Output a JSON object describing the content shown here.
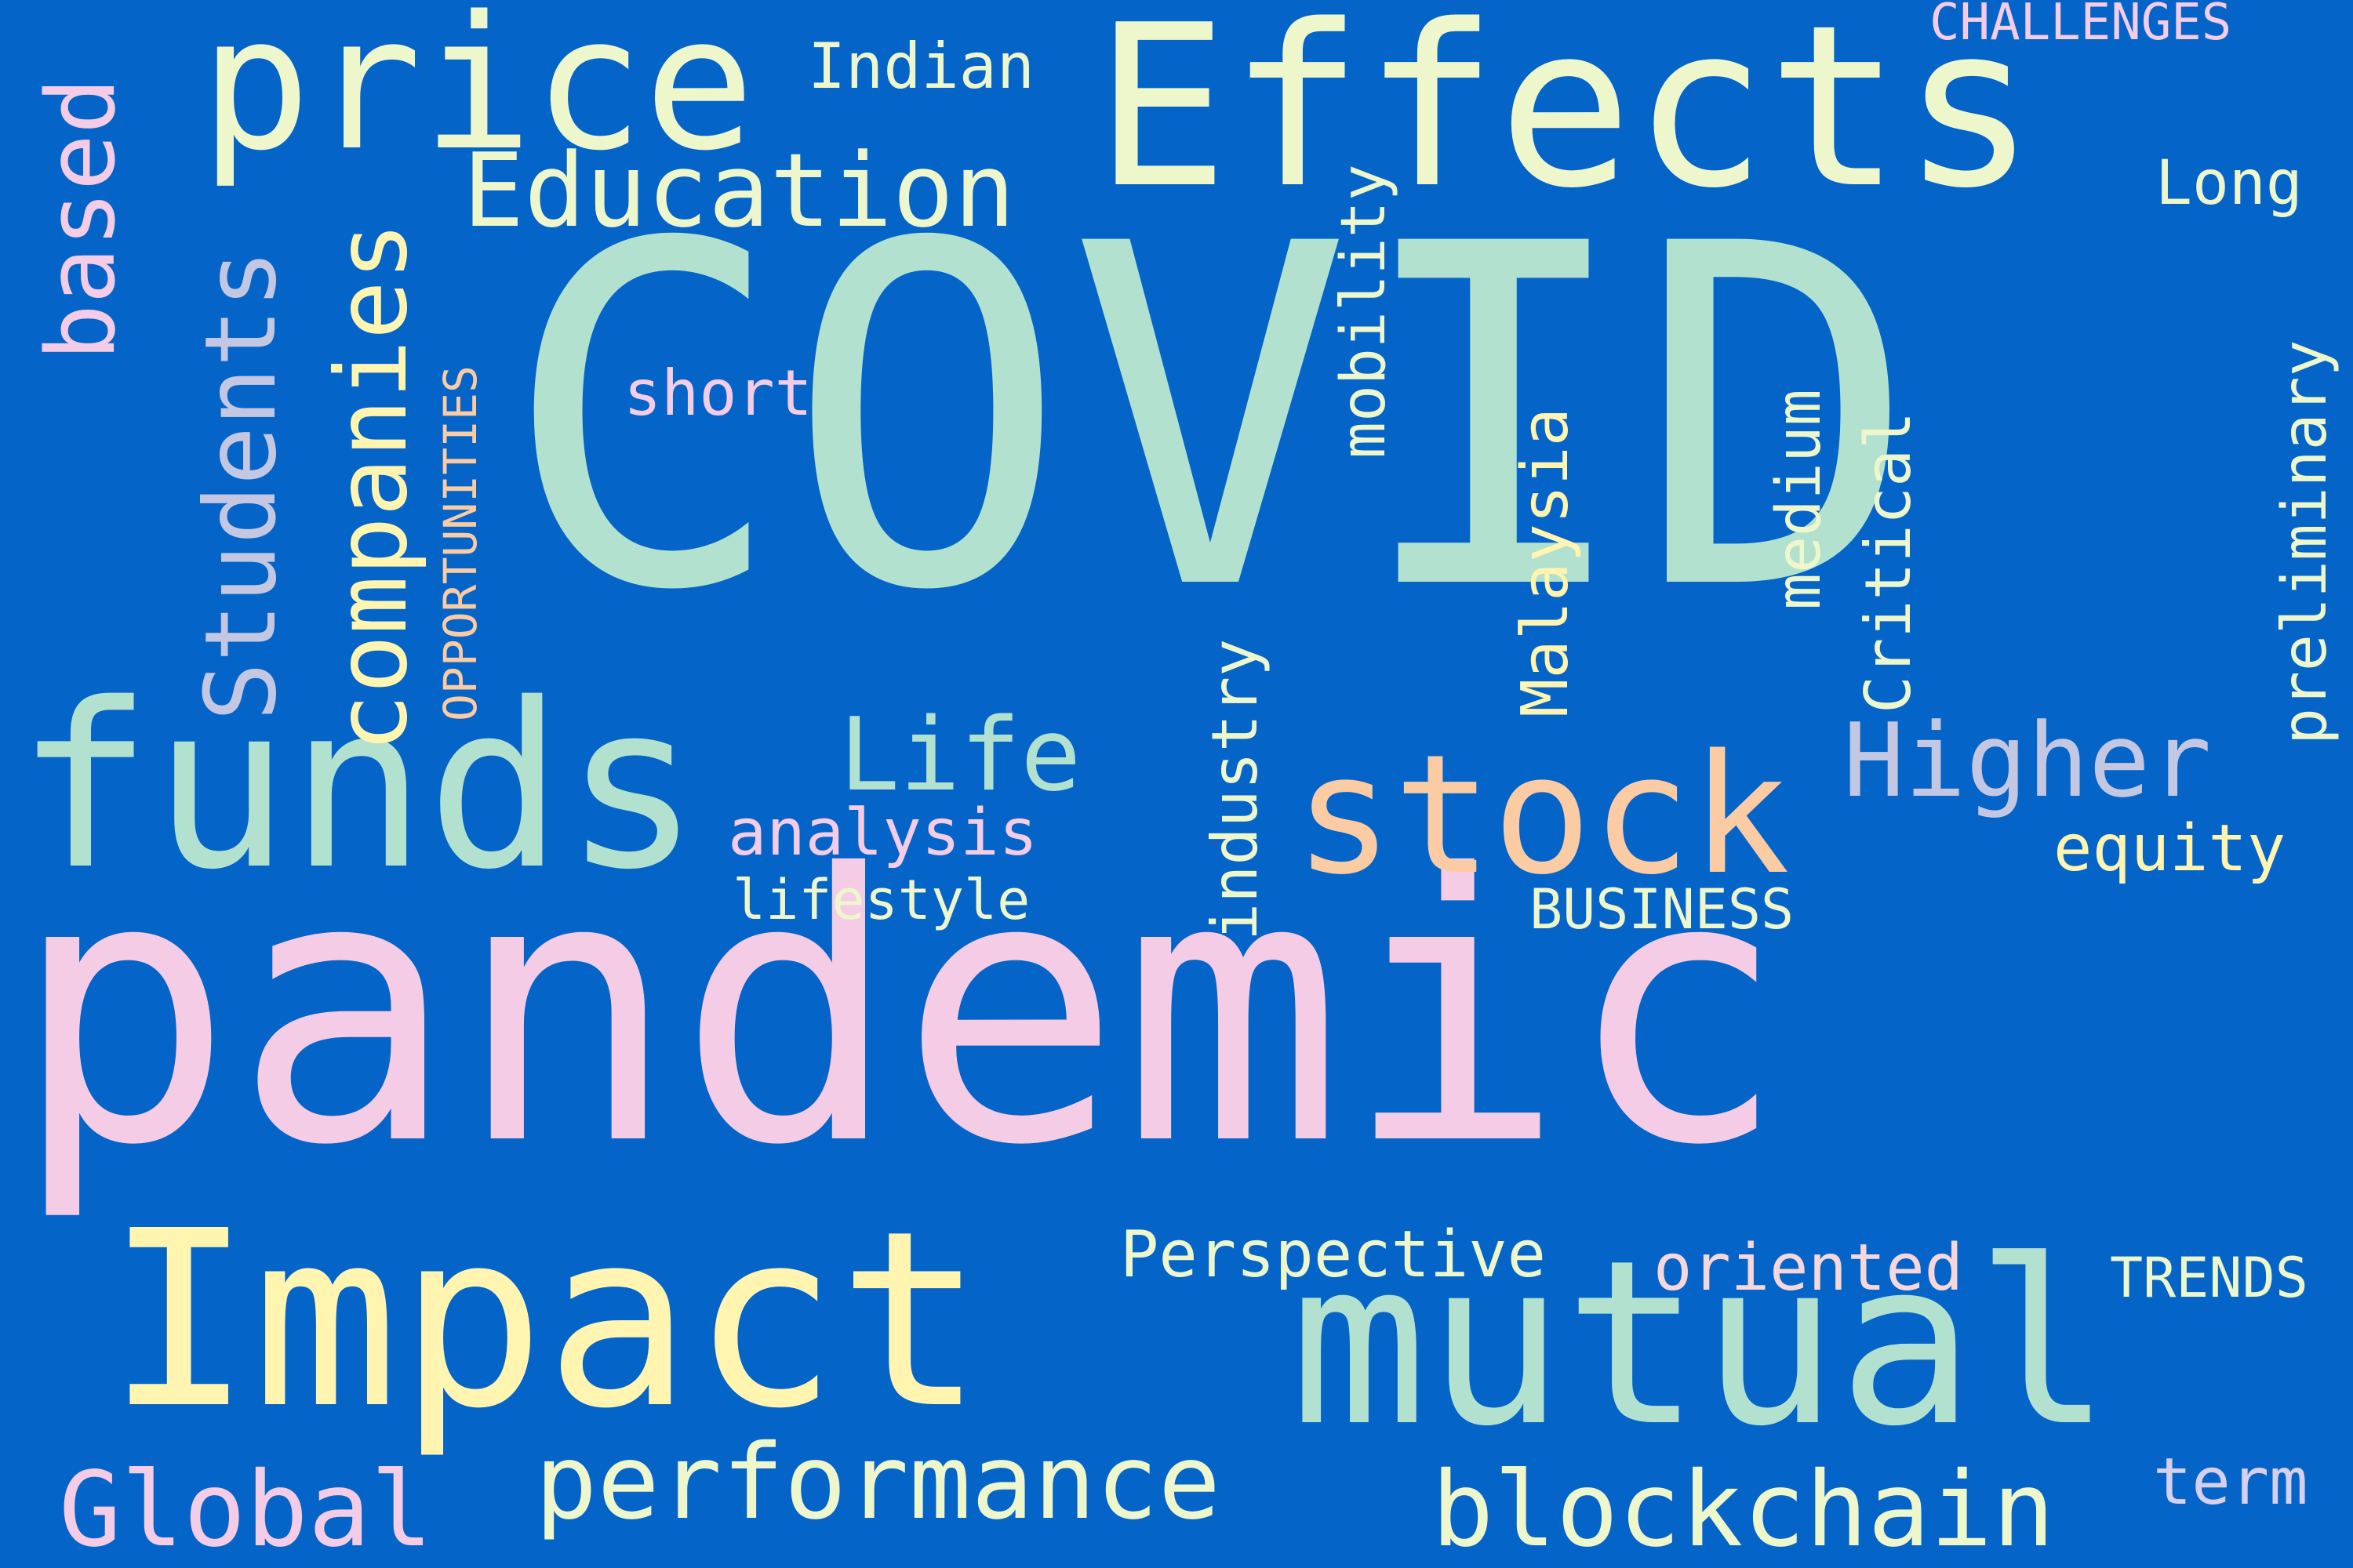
{
  "background_color": "#0564c8",
  "palette": {
    "mint": "#b2e2cf",
    "pink": "#f5cce6",
    "cream": "#eef7cc",
    "yellow": "#fff5b0",
    "peach": "#fbcba4",
    "lilac": "#d7d0ec",
    "lavender": "#c3c7e2",
    "blush": "#f8d7da"
  },
  "words": {
    "covid": "COVID",
    "pandemic": "pandemic",
    "effects": "Effects",
    "price": "price",
    "impact": "Impact",
    "funds": "funds",
    "mutual": "mutual",
    "stock": "stock",
    "education": "Education",
    "indian": "Indian",
    "challenges": "CHALLENGES",
    "long": "Long",
    "based": "based",
    "students": "Students",
    "companies": "companies",
    "opportunities": "OPPORTUNITIES",
    "short": "short",
    "mobility": "mobility",
    "medium": "medium",
    "critical": "Critical",
    "preliminary": "preliminary",
    "malaysia": "Malaysia",
    "industry": "industry",
    "higher": "Higher",
    "life": "Life",
    "analysis": "analysis",
    "lifestyle": "lifestyle",
    "business": "BUSINESS",
    "equity": "equity",
    "perspective": "Perspective",
    "oriented": "oriented",
    "trends": "TRENDS",
    "global": "Global",
    "performance": "performance",
    "blockchain": "blockchain",
    "term": "term"
  }
}
